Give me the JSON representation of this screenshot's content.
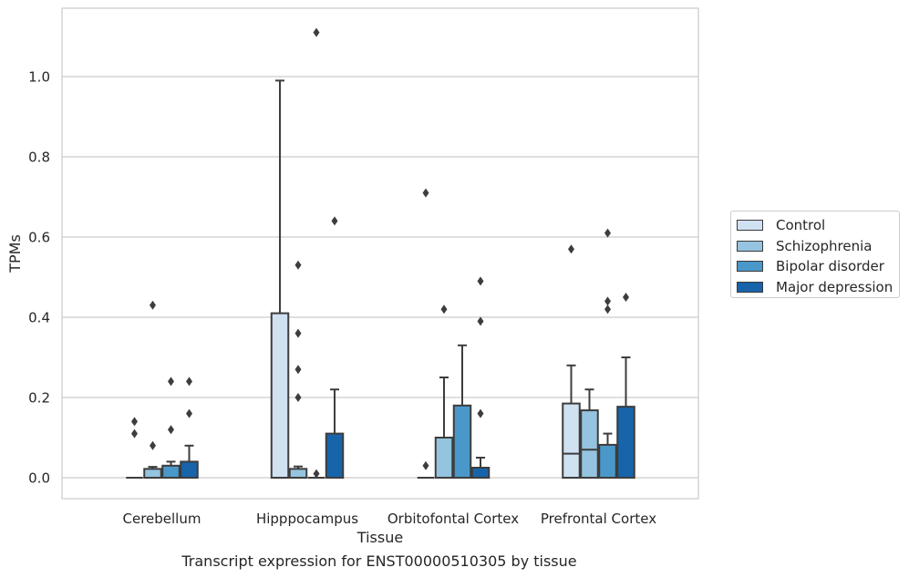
{
  "caption": "Transcript expression for ENST00000510305 by tissue",
  "chart_data": {
    "type": "box",
    "xlabel": "Tissue",
    "ylabel": "TPMs",
    "ylim": [
      -0.055,
      1.17
    ],
    "yticks": [
      0.0,
      0.2,
      0.4,
      0.6,
      0.8,
      1.0
    ],
    "ytick_labels": [
      "0.0",
      "0.2",
      "0.4",
      "0.6",
      "0.8",
      "1.0"
    ],
    "grid": "horizontal",
    "legend_position": "right",
    "categories": [
      "Cerebellum",
      "Hipppocampus",
      "Orbitofontal Cortex",
      "Prefrontal Cortex"
    ],
    "series": [
      {
        "name": "Control",
        "color": "#d0e1f2",
        "boxes": [
          {
            "q1": 0.0,
            "median": 0.0,
            "q3": 0.0,
            "whisker_low": 0.0,
            "whisker_high": 0.0,
            "outliers": [
              0.14,
              0.11
            ]
          },
          {
            "q1": 0.0,
            "median": 0.0,
            "q3": 0.41,
            "whisker_low": 0.0,
            "whisker_high": 0.99,
            "outliers": []
          },
          {
            "q1": 0.0,
            "median": 0.0,
            "q3": 0.0,
            "whisker_low": 0.0,
            "whisker_high": 0.0,
            "outliers": [
              0.71,
              0.03
            ]
          },
          {
            "q1": 0.0,
            "median": 0.06,
            "q3": 0.185,
            "whisker_low": 0.0,
            "whisker_high": 0.28,
            "outliers": [
              0.57
            ]
          }
        ]
      },
      {
        "name": "Schizophrenia",
        "color": "#94c4df",
        "boxes": [
          {
            "q1": 0.0,
            "median": 0.0,
            "q3": 0.022,
            "whisker_low": 0.0,
            "whisker_high": 0.027,
            "outliers": [
              0.43,
              0.08
            ]
          },
          {
            "q1": 0.0,
            "median": 0.0,
            "q3": 0.022,
            "whisker_low": 0.0,
            "whisker_high": 0.028,
            "outliers": [
              0.53,
              0.36,
              0.27,
              0.2
            ]
          },
          {
            "q1": 0.0,
            "median": 0.0,
            "q3": 0.1,
            "whisker_low": 0.0,
            "whisker_high": 0.25,
            "outliers": [
              0.42
            ]
          },
          {
            "q1": 0.0,
            "median": 0.07,
            "q3": 0.168,
            "whisker_low": 0.0,
            "whisker_high": 0.22,
            "outliers": []
          }
        ]
      },
      {
        "name": "Bipolar disorder",
        "color": "#4a98c9",
        "boxes": [
          {
            "q1": 0.0,
            "median": 0.0,
            "q3": 0.03,
            "whisker_low": 0.0,
            "whisker_high": 0.04,
            "outliers": [
              0.24,
              0.12
            ]
          },
          {
            "q1": 0.0,
            "median": 0.0,
            "q3": 0.0,
            "whisker_low": 0.0,
            "whisker_high": 0.0,
            "outliers": [
              1.11,
              0.01
            ]
          },
          {
            "q1": 0.0,
            "median": 0.0,
            "q3": 0.18,
            "whisker_low": 0.0,
            "whisker_high": 0.33,
            "outliers": []
          },
          {
            "q1": 0.0,
            "median": 0.0,
            "q3": 0.082,
            "whisker_low": 0.0,
            "whisker_high": 0.11,
            "outliers": [
              0.61,
              0.44,
              0.42
            ]
          }
        ]
      },
      {
        "name": "Major depression",
        "color": "#1764ab",
        "boxes": [
          {
            "q1": 0.0,
            "median": 0.0,
            "q3": 0.04,
            "whisker_low": 0.0,
            "whisker_high": 0.08,
            "outliers": [
              0.24,
              0.16
            ]
          },
          {
            "q1": 0.0,
            "median": 0.0,
            "q3": 0.11,
            "whisker_low": 0.0,
            "whisker_high": 0.22,
            "outliers": [
              0.64
            ]
          },
          {
            "q1": 0.0,
            "median": 0.0,
            "q3": 0.025,
            "whisker_low": 0.0,
            "whisker_high": 0.05,
            "outliers": [
              0.49,
              0.39,
              0.16
            ]
          },
          {
            "q1": 0.0,
            "median": 0.0,
            "q3": 0.177,
            "whisker_low": 0.0,
            "whisker_high": 0.3,
            "outliers": [
              0.45
            ]
          }
        ]
      }
    ]
  }
}
